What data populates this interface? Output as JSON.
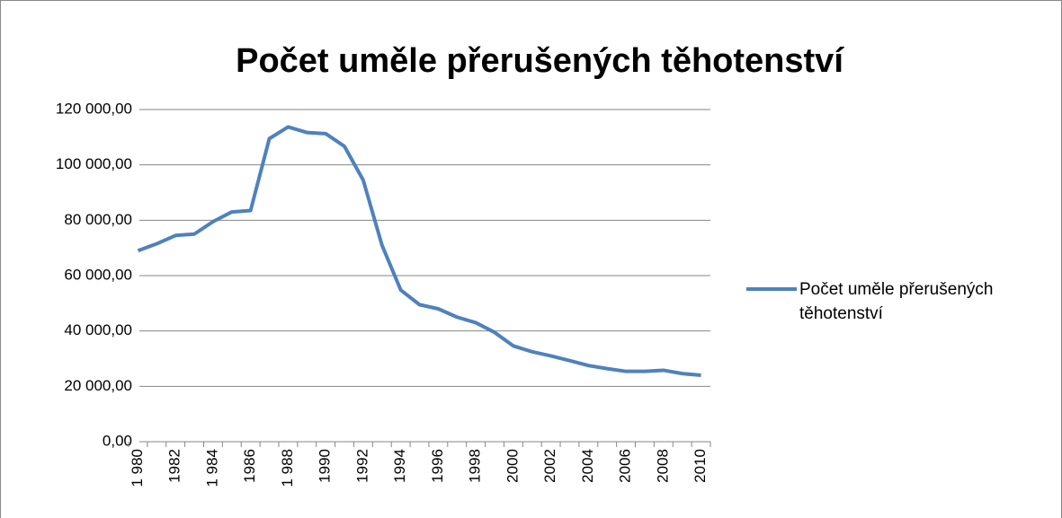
{
  "chart_data": {
    "type": "line",
    "title": "Počet uměle přerušených těhotenství",
    "categories": [
      "1 980",
      null,
      "1982",
      null,
      "1 984",
      null,
      "1986",
      null,
      "1 988",
      null,
      "1990",
      null,
      "1992",
      null,
      "1994",
      null,
      "1996",
      null,
      "1998",
      null,
      "2000",
      null,
      "2002",
      null,
      "2004",
      null,
      "2006",
      null,
      "2008",
      null,
      "2010"
    ],
    "series": [
      {
        "name": "Počet uměle přerušených těhotenství",
        "color": "#4f81bd",
        "values": [
          69000,
          71500,
          74500,
          75000,
          79500,
          83000,
          83500,
          109500,
          113700,
          111700,
          111300,
          106700,
          94500,
          71000,
          54800,
          49500,
          48000,
          45000,
          43000,
          39500,
          34600,
          32500,
          31000,
          29300,
          27500,
          26400,
          25400,
          25400,
          25800,
          24600,
          24000
        ]
      }
    ],
    "ylim": [
      0,
      120000
    ],
    "yticks": [
      {
        "value": 0,
        "label": "0,00"
      },
      {
        "value": 20000,
        "label": "20 000,00"
      },
      {
        "value": 40000,
        "label": "40 000,00"
      },
      {
        "value": 60000,
        "label": "60 000,00"
      },
      {
        "value": 80000,
        "label": "80 000,00"
      },
      {
        "value": 100000,
        "label": "100 000,00"
      },
      {
        "value": 120000,
        "label": "120 000,00"
      }
    ],
    "grid": true,
    "legend": "right"
  }
}
